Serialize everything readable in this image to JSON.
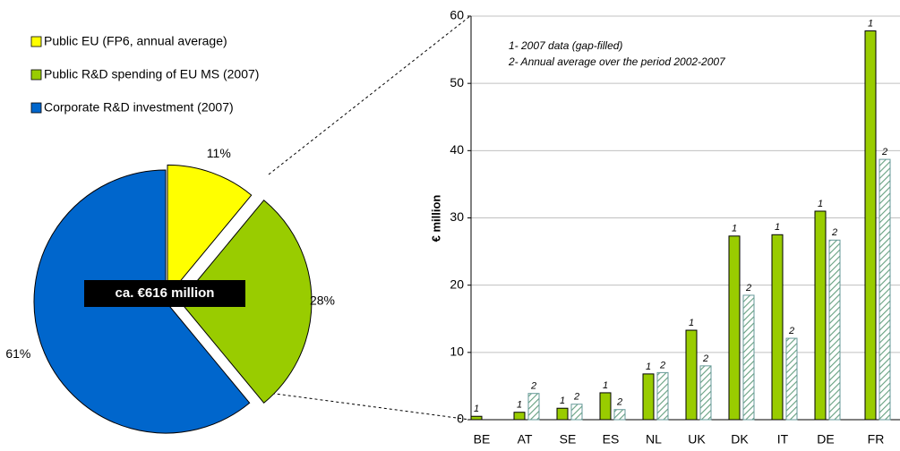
{
  "chart_data": [
    {
      "type": "pie",
      "categories": [
        "Public EU (FP6, annual average)",
        "Public R&D spending of EU MS (2007)",
        "Corporate R&D investment (2007)"
      ],
      "values": [
        11,
        28,
        61
      ],
      "value_labels": [
        "11%",
        "28%",
        "61%"
      ],
      "colors": [
        "#ffff00",
        "#99cc00",
        "#0066cc"
      ],
      "annotation": "ca. €616 million",
      "legend": "top-left"
    },
    {
      "type": "bar",
      "categories": [
        "BE",
        "AT",
        "SE",
        "ES",
        "NL",
        "UK",
        "DK",
        "IT",
        "DE",
        "FR"
      ],
      "series": [
        {
          "name": "1",
          "color": "#99cc00",
          "values": [
            0.5,
            1.1,
            1.7,
            4.0,
            6.8,
            13.3,
            27.3,
            27.5,
            31.0,
            57.8
          ]
        },
        {
          "name": "2",
          "color": "hatched",
          "values": [
            null,
            3.9,
            2.3,
            1.5,
            7.0,
            8.0,
            18.5,
            12.1,
            26.7,
            38.7
          ]
        }
      ],
      "ylabel": "€ million",
      "annotations": [
        "1- 2007 data (gap-filled)",
        "2- Annual average over the period 2002-2007"
      ],
      "ylim": [
        0,
        60
      ],
      "yticks": [
        0,
        10,
        20,
        30,
        40,
        50,
        60
      ],
      "grid": true
    }
  ]
}
